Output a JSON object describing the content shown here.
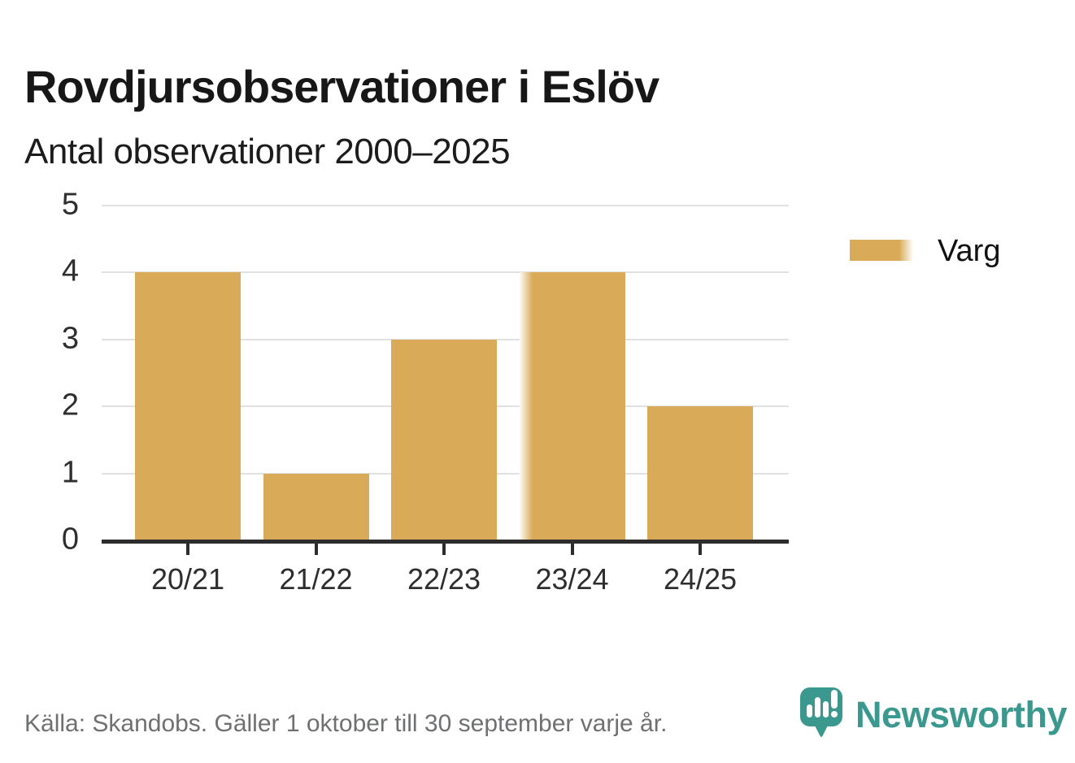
{
  "header": {
    "title": "Rovdjursobservationer i Eslöv",
    "subtitle": "Antal observationer 2000–2025"
  },
  "chart_data": {
    "type": "bar",
    "categories": [
      "20/21",
      "21/22",
      "22/23",
      "23/24",
      "24/25"
    ],
    "values": [
      4,
      1,
      3,
      4,
      2
    ],
    "series": [
      {
        "name": "Varg",
        "values": [
          4,
          1,
          3,
          4,
          2
        ],
        "color": "#d9ab58"
      }
    ],
    "title": "Rovdjursobservationer i Eslöv",
    "subtitle": "Antal observationer 2000–2025",
    "xlabel": "",
    "ylabel": "Antal observationer",
    "ylim": [
      0,
      5
    ],
    "yticks": [
      0,
      1,
      2,
      3,
      4,
      5
    ],
    "grid": true,
    "legend_position": "right",
    "faded_bar_index": 3,
    "legend": {
      "entries": [
        {
          "label": "Varg",
          "color": "#d9ab58"
        }
      ]
    }
  },
  "footer": {
    "source": "Källa: Skandobs. Gäller 1 oktober till 30 september varje år."
  },
  "branding": {
    "name": "Newsworthy",
    "icon": "speech-bubble-bar-chart-icon",
    "color": "#3b988e"
  },
  "colors": {
    "bar": "#d9ab58",
    "teal": "#3b988e",
    "grid": "#e1e1e1",
    "axis": "#2d2d2d",
    "title_text": "#171717",
    "axis_text": "#2e2e2e",
    "muted_text": "#6f7072"
  }
}
